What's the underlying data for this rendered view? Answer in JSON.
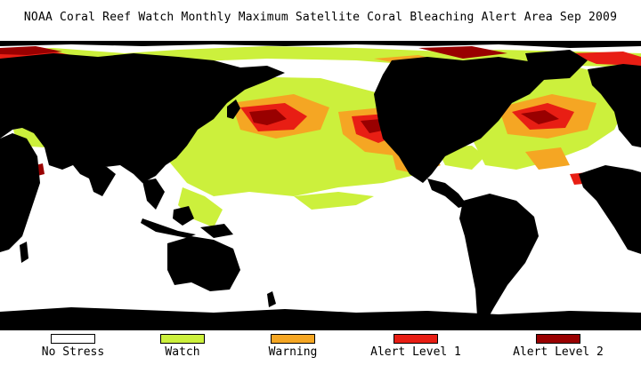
{
  "title": "NOAA Coral Reef Watch Monthly Maximum Satellite Coral Bleaching Alert Area    Sep 2009",
  "colors": {
    "land": "#000000",
    "no_stress": "#ffffff",
    "watch": "#ccf03c",
    "warning": "#f5a623",
    "alert_level_1": "#e81e14",
    "alert_level_2": "#990000"
  },
  "legend": [
    {
      "label": "No Stress",
      "color": "#ffffff"
    },
    {
      "label": "Watch",
      "color": "#ccf03c"
    },
    {
      "label": "Warning",
      "color": "#f5a623"
    },
    {
      "label": "Alert Level 1",
      "color": "#e81e14"
    },
    {
      "label": "Alert Level 2",
      "color": "#990000"
    }
  ]
}
